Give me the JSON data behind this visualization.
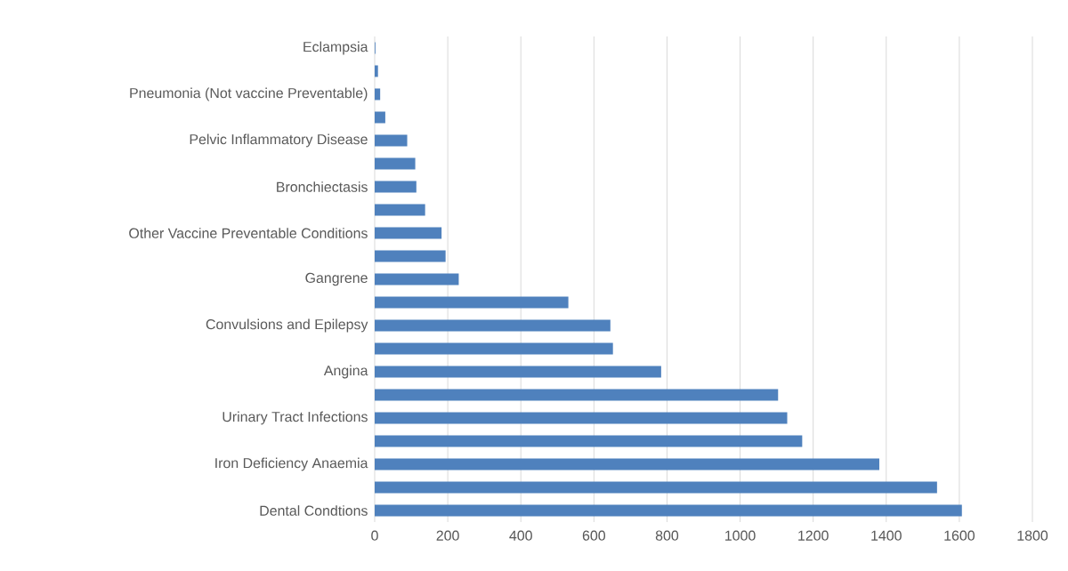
{
  "chart_data": {
    "type": "bar",
    "orientation": "horizontal",
    "categories": [
      "Eclampsia",
      null,
      "Pneumonia (Not vaccine Preventable)",
      null,
      "Pelvic Inflammatory Disease",
      null,
      "Bronchiectasis",
      null,
      "Other Vaccine Preventable Conditions",
      null,
      "Gangrene",
      null,
      "Convulsions and Epilepsy",
      null,
      "Angina",
      null,
      "Urinary Tract Infections",
      null,
      "Iron Deficiency Anaemia",
      null,
      "Dental Condtions"
    ],
    "values": [
      2,
      9,
      15,
      29,
      89,
      111,
      114,
      138,
      183,
      194,
      230,
      530,
      645,
      652,
      784,
      1104,
      1129,
      1170,
      1381,
      1539,
      1607
    ],
    "color": "#4f81bd",
    "xlim": [
      0,
      1800
    ],
    "xticks": [
      0,
      200,
      400,
      600,
      800,
      1000,
      1200,
      1400,
      1600,
      1800
    ],
    "grid": "x"
  }
}
